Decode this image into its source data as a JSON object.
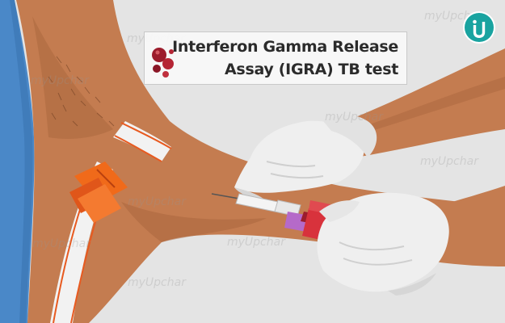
{
  "title": {
    "line1": "Interferon Gamma Release",
    "line2": "Assay (IGRA) TB test"
  },
  "brand": {
    "watermark_text": "myUpchar",
    "logo_icon": "myupchar-logo-icon",
    "logo_color": "#19a3a0"
  },
  "colors": {
    "background": "#e4e4e4",
    "skin": "#c47c50",
    "skin_shadow": "#a8643c",
    "glove": "#efefef",
    "tourniquet_strap": "#f2f2f2",
    "tourniquet_buckle": "#f06a1a",
    "tube_cap": "#d8323c",
    "needle_holder": "#b56ac9",
    "blood": "#9c1c2c",
    "scrubs": "#4a88c8"
  }
}
